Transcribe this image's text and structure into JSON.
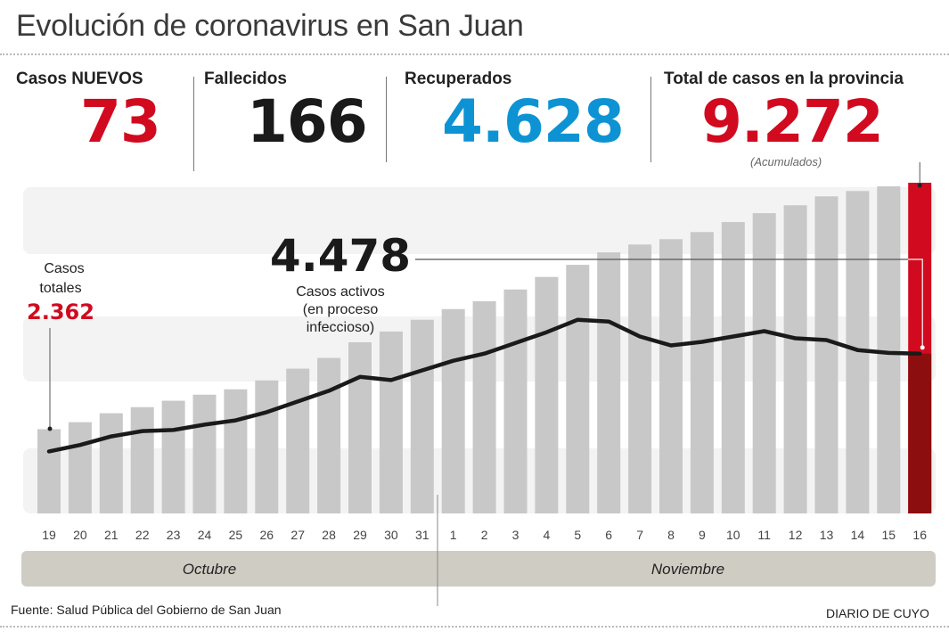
{
  "title": "Evolución de coronavirus en San Juan",
  "stats": {
    "new_cases": {
      "label": "Casos NUEVOS",
      "value": "73",
      "color": "#d10a1f"
    },
    "deaths": {
      "label": "Fallecidos",
      "value": "166",
      "color": "#1a1a1a"
    },
    "recovered": {
      "label": "Recuperados",
      "value": "4.628",
      "color": "#0d93d3"
    },
    "total": {
      "label": "Total de casos en la provincia",
      "value": "9.272",
      "note": "(Acumulados)",
      "color": "#d10a1f"
    }
  },
  "annotations": {
    "start_label_1": "Casos",
    "start_label_2": "totales",
    "start_value": "2.362",
    "active_value": "4.478",
    "active_label_1": "Casos activos",
    "active_label_2": "(en proceso",
    "active_label_3": "infeccioso)"
  },
  "months": [
    "Octubre",
    "Noviembre"
  ],
  "footer": {
    "source": "Fuente: Salud Pública del Gobierno de San Juan",
    "brand": "DIARIO DE CUYO"
  },
  "chart_data": {
    "type": "bar",
    "title": "Evolución de coronavirus en San Juan",
    "categories": [
      "19",
      "20",
      "21",
      "22",
      "23",
      "24",
      "25",
      "26",
      "27",
      "28",
      "29",
      "30",
      "31",
      "1",
      "2",
      "3",
      "4",
      "5",
      "6",
      "7",
      "8",
      "9",
      "10",
      "11",
      "12",
      "13",
      "14",
      "15",
      "16"
    ],
    "month_groups": [
      {
        "name": "Octubre",
        "from": "19",
        "to": "31"
      },
      {
        "name": "Noviembre",
        "from": "1",
        "to": "16"
      }
    ],
    "series": [
      {
        "name": "Casos totales",
        "kind": "bar",
        "values": [
          2362,
          2560,
          2810,
          2980,
          3160,
          3330,
          3480,
          3730,
          4060,
          4360,
          4800,
          5100,
          5430,
          5730,
          5950,
          6280,
          6630,
          6970,
          7320,
          7540,
          7690,
          7890,
          8170,
          8420,
          8640,
          8890,
          9040,
          9170,
          9272
        ]
      },
      {
        "name": "Casos activos",
        "kind": "line",
        "values": [
          1740,
          1920,
          2160,
          2310,
          2340,
          2490,
          2610,
          2840,
          3140,
          3440,
          3830,
          3740,
          4010,
          4280,
          4480,
          4780,
          5080,
          5430,
          5380,
          4960,
          4710,
          4810,
          4960,
          5110,
          4910,
          4860,
          4580,
          4500,
          4478
        ]
      }
    ],
    "ylim": [
      0,
      9500
    ],
    "grid": "horizontal bands",
    "highlight": {
      "category": "16",
      "total": 9272,
      "active": 4478
    },
    "colors": {
      "bar": "#c8c8c8",
      "highlight_bar": "#d10a1f",
      "highlight_active": "#8c0e0e",
      "line": "#1a1a1a",
      "band": "#f3f3f3",
      "month_bar": "#cfccc3"
    }
  }
}
